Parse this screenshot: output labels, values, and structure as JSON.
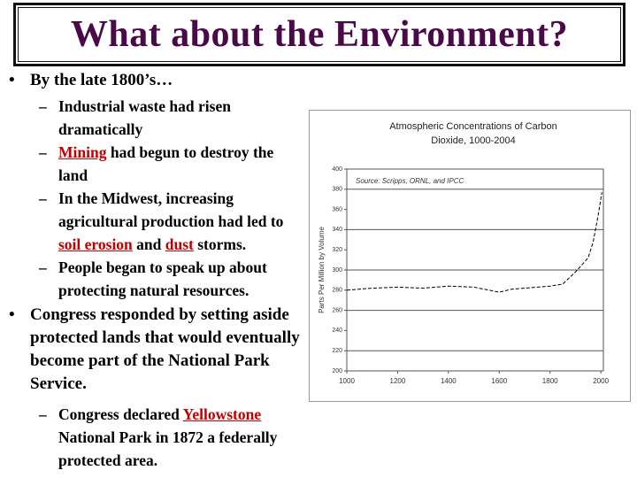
{
  "title": "What about the Environment?",
  "bullets": [
    {
      "text": "By the late 1800’s…",
      "subs": [
        [
          "Industrial waste had risen dramatically"
        ],
        [
          "Mining",
          " had begun to destroy the land"
        ],
        [
          "In the Midwest, increasing agricultural production had led to ",
          "soil erosion",
          " and ",
          "dust",
          " storms."
        ],
        [
          "People began to speak up about protecting natural resources."
        ]
      ]
    },
    {
      "text": "Congress responded by setting aside protected lands that would eventually become part of the National Park Service.",
      "subs": [
        [
          "Congress declared ",
          "Yellowstone",
          " National Park in 1872 a federally protected area."
        ]
      ]
    }
  ],
  "chart_data": {
    "type": "line",
    "title": "Atmospheric Concentrations of Carbon Dioxide, 1000-2004",
    "annotation": "Source: Scripps, ORNL, and IPCC",
    "y_label": "Parts Per Million by Volume",
    "x": [
      1000,
      1100,
      1200,
      1300,
      1400,
      1500,
      1600,
      1650,
      1700,
      1750,
      1800,
      1850,
      1900,
      1950,
      1970,
      1990,
      2004
    ],
    "values": [
      280,
      282,
      283,
      282,
      284,
      283,
      278,
      281,
      282,
      283,
      284,
      286,
      298,
      312,
      328,
      355,
      377
    ],
    "color": "#000000",
    "xlim": [
      1000,
      2010
    ],
    "xticks": [
      1000,
      1200,
      1400,
      1600,
      1800,
      2000
    ],
    "ylim": [
      200,
      400
    ],
    "yticks": [
      200,
      220,
      240,
      260,
      280,
      300,
      320,
      340,
      360,
      380,
      400
    ],
    "ygrid": [
      220,
      260,
      300,
      340,
      380
    ]
  }
}
